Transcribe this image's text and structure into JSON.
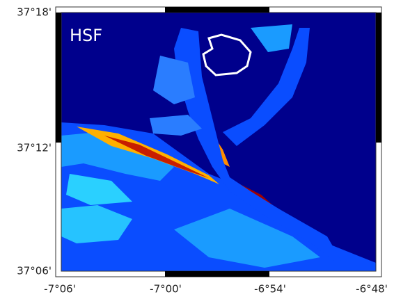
{
  "map": {
    "label": "HSF",
    "lat_ticks": [
      "37°18'",
      "37°12'",
      "37°06'"
    ],
    "lon_ticks": [
      "-7°06'",
      "-7°00'",
      "-6°54'",
      "-6°48'"
    ]
  }
}
